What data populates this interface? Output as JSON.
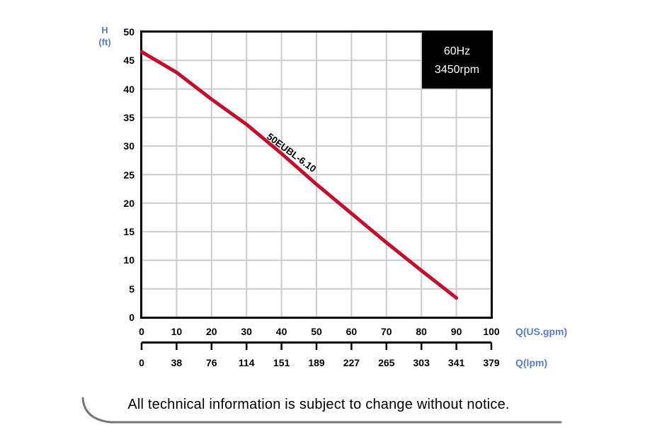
{
  "chart_data": {
    "type": "line",
    "title": "",
    "frequency": "60Hz",
    "speed": "3450rpm",
    "grid": true,
    "legend": "none",
    "x_axis_primary": {
      "label": "Q(US.gpm)",
      "min": 0,
      "max": 100,
      "ticks": [
        0,
        10,
        20,
        30,
        40,
        50,
        60,
        70,
        80,
        90,
        100
      ]
    },
    "x_axis_secondary": {
      "label": "Q(lpm)",
      "ticks": [
        0,
        38,
        76,
        114,
        151,
        189,
        227,
        265,
        303,
        341,
        379
      ]
    },
    "y_axis": {
      "label_line1": "H",
      "label_line2": "(ft)",
      "min": 0,
      "max": 50,
      "ticks": [
        0,
        5,
        10,
        15,
        20,
        25,
        30,
        35,
        40,
        45,
        50
      ]
    },
    "series": [
      {
        "name": "50EUBL-6.10",
        "color": "#C0102E",
        "points": [
          [
            0,
            46.5
          ],
          [
            10,
            42.9
          ],
          [
            20,
            38.2
          ],
          [
            30,
            33.8
          ],
          [
            40,
            28.7
          ],
          [
            50,
            23.3
          ],
          [
            60,
            18.2
          ],
          [
            70,
            13.1
          ],
          [
            80,
            8.2
          ],
          [
            90,
            3.4
          ]
        ],
        "label_at_q": 41.5,
        "label_angle_deg": 36.5
      }
    ]
  },
  "footer": {
    "disclaimer": "All technical information is subject to change without notice."
  },
  "colors": {
    "curve_red": "#C0102E",
    "axis_label_blue": "#5B7BC0",
    "grid_gray": "#CBCBCB",
    "swoosh_gray": "#777777",
    "box_bg": "#000000",
    "box_text": "#FFFFFF"
  }
}
